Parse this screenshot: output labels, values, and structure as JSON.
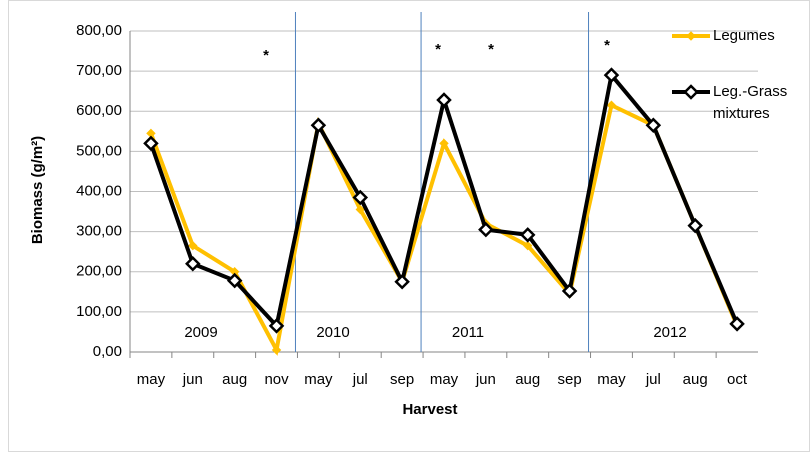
{
  "chart_data": {
    "type": "line",
    "y_label": "Biomass (g/m²)",
    "x_label": "Harvest",
    "categories": [
      "may",
      "jun",
      "aug",
      "nov",
      "may",
      "jul",
      "sep",
      "may",
      "jun",
      "aug",
      "sep",
      "may",
      "jul",
      "aug",
      "oct"
    ],
    "series": [
      {
        "name": "Legumes",
        "color": "#ffc000",
        "values": [
          545,
          265,
          200,
          5,
          570,
          355,
          175,
          520,
          320,
          265,
          145,
          615,
          565,
          315,
          65
        ]
      },
      {
        "name": "Leg.-Grass mixtures",
        "color": "#000000",
        "values": [
          520,
          220,
          178,
          65,
          565,
          385,
          175,
          628,
          305,
          292,
          152,
          690,
          565,
          315,
          70
        ]
      }
    ],
    "annotations": [
      "2009",
      "2010",
      "2011",
      "2012",
      "*",
      "*",
      "*",
      "*"
    ],
    "ylim": [
      0,
      800
    ],
    "yticks": [
      {
        "value": 0,
        "label": "0,00"
      },
      {
        "value": 100,
        "label": "100,00"
      },
      {
        "value": 200,
        "label": "200,00"
      },
      {
        "value": 300,
        "label": "300,00"
      },
      {
        "value": 400,
        "label": "400,00"
      },
      {
        "value": 500,
        "label": "500,00"
      },
      {
        "value": 600,
        "label": "600,00"
      },
      {
        "value": 700,
        "label": "700,00"
      },
      {
        "value": 800,
        "label": "800,00"
      }
    ],
    "grid": true
  }
}
